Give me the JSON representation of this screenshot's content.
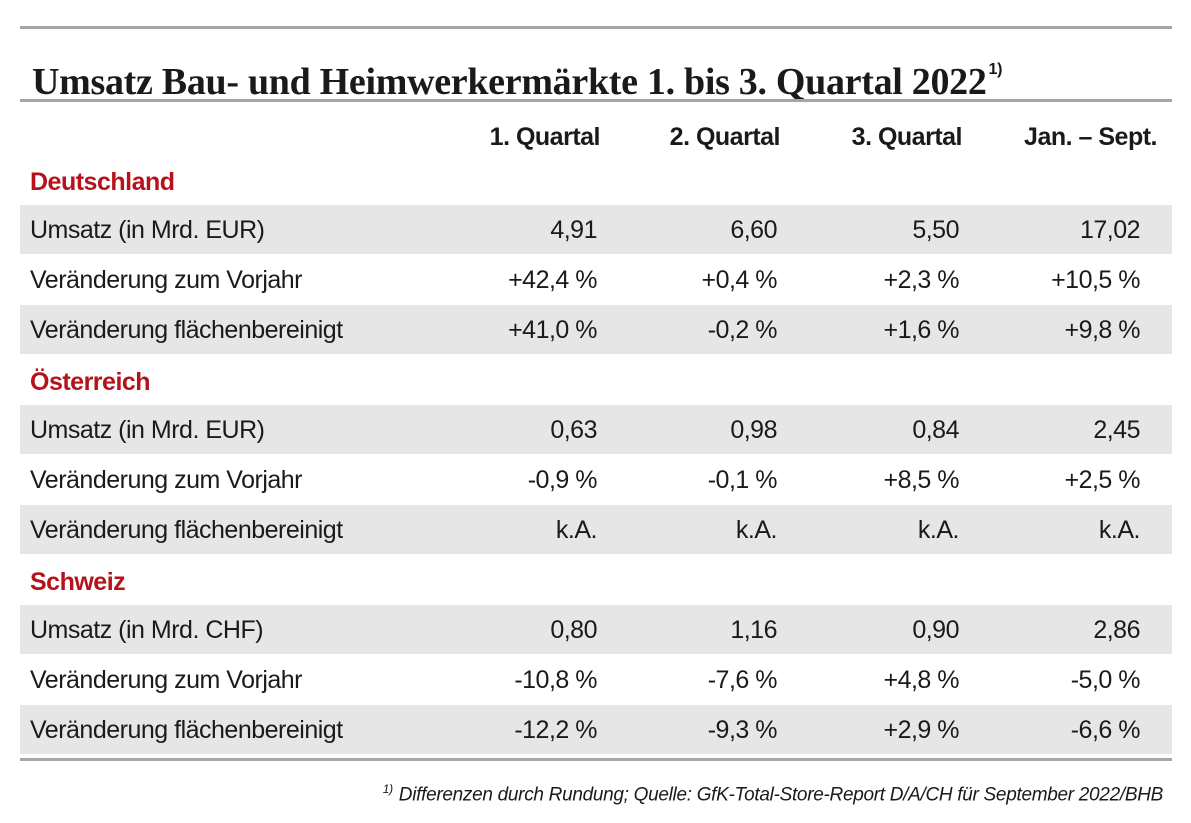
{
  "title": "Umsatz Bau- und Heimwerkermärkte 1. bis 3. Quartal 2022",
  "title_note": "1)",
  "columns": [
    "1. Quartal",
    "2. Quartal",
    "3. Quartal",
    "Jan. – Sept."
  ],
  "sections": [
    {
      "name": "Deutschland",
      "rows": [
        {
          "label": "Umsatz (in Mrd. EUR)",
          "values": [
            "4,91",
            "6,60",
            "5,50",
            "17,02"
          ]
        },
        {
          "label": "Veränderung zum Vorjahr",
          "values": [
            "+42,4 %",
            "+0,4 %",
            "+2,3 %",
            "+10,5 %"
          ]
        },
        {
          "label": "Veränderung flächenbereinigt",
          "values": [
            "+41,0 %",
            "-0,2 %",
            "+1,6 %",
            "+9,8 %"
          ]
        }
      ]
    },
    {
      "name": "Österreich",
      "rows": [
        {
          "label": "Umsatz (in Mrd. EUR)",
          "values": [
            "0,63",
            "0,98",
            "0,84",
            "2,45"
          ]
        },
        {
          "label": "Veränderung zum Vorjahr",
          "values": [
            "-0,9 %",
            "-0,1 %",
            "+8,5 %",
            "+2,5 %"
          ]
        },
        {
          "label": "Veränderung flächenbereinigt",
          "values": [
            "k.A.",
            "k.A.",
            "k.A.",
            "k.A."
          ]
        }
      ]
    },
    {
      "name": "Schweiz",
      "rows": [
        {
          "label": "Umsatz (in Mrd. CHF)",
          "values": [
            "0,80",
            "1,16",
            "0,90",
            "2,86"
          ]
        },
        {
          "label": "Veränderung zum Vorjahr",
          "values": [
            "-10,8 %",
            "-7,6 %",
            "+4,8 %",
            "-5,0 %"
          ]
        },
        {
          "label": "Veränderung flächenbereinigt",
          "values": [
            "-12,2 %",
            "-9,3 %",
            "+2,9 %",
            "-6,6 %"
          ]
        }
      ]
    }
  ],
  "footnote": {
    "marker": "1)",
    "text": "Differenzen durch Rundung; Quelle: GfK-Total-Store-Report D/A/CH für September 2022/BHB"
  }
}
